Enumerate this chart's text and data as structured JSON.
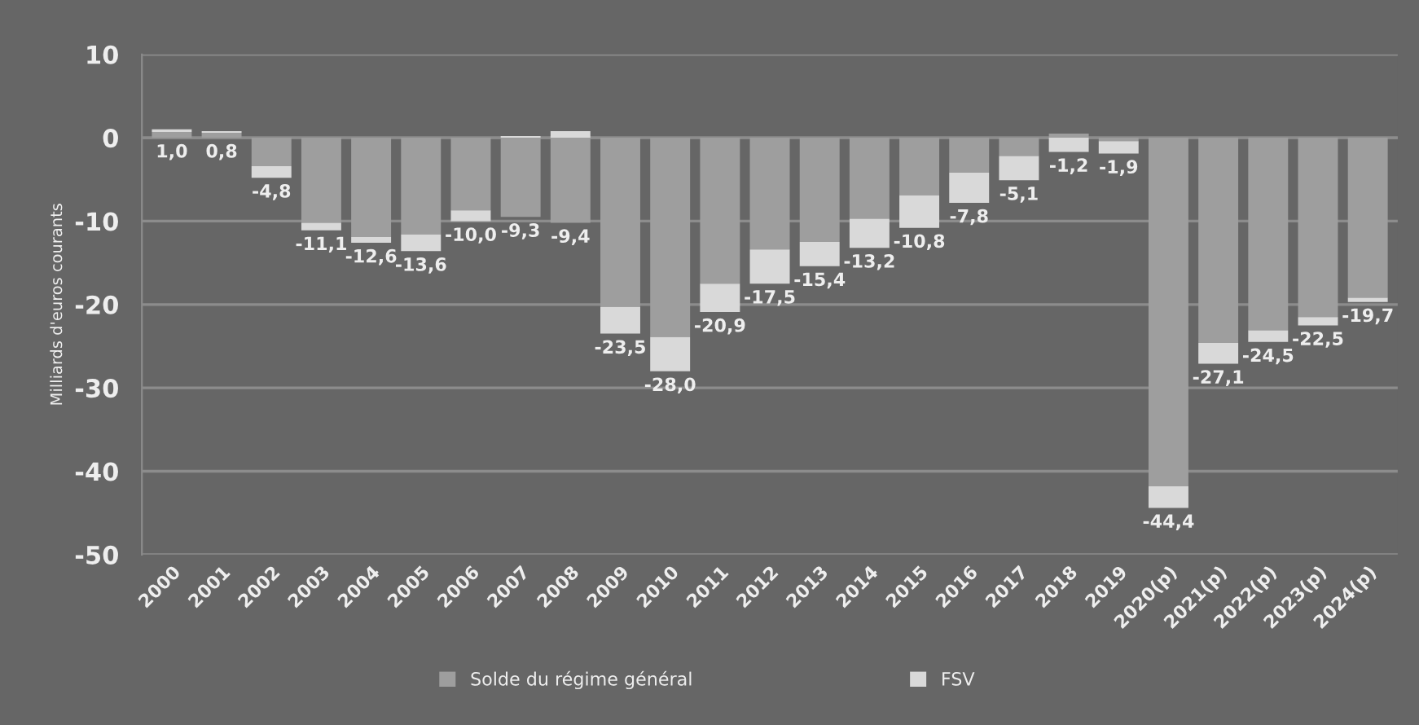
{
  "chart_data": {
    "type": "bar",
    "stacked": true,
    "ylabel": "Milliards d'euros courants",
    "categories": [
      "2000",
      "2001",
      "2002",
      "2003",
      "2004",
      "2005",
      "2006",
      "2007",
      "2008",
      "2009",
      "2010",
      "2011",
      "2012",
      "2013",
      "2014",
      "2015",
      "2016",
      "2017",
      "2018",
      "2019",
      "2020(p)",
      "2021(p)",
      "2022(p)",
      "2023(p)",
      "2024(p)"
    ],
    "series": [
      {
        "name": "Solde du régime général",
        "color": "#9e9e9e",
        "values": [
          0.7,
          0.6,
          -3.4,
          -10.2,
          -11.9,
          -11.6,
          -8.7,
          -9.5,
          -10.2,
          -20.3,
          -23.9,
          -17.5,
          -13.4,
          -12.5,
          -9.7,
          -6.9,
          -4.2,
          -2.2,
          0.5,
          -0.4,
          -41.8,
          -24.6,
          -23.1,
          -21.5,
          -19.2
        ]
      },
      {
        "name": "FSV",
        "color": "#d9d9d9",
        "values": [
          0.3,
          0.2,
          -1.4,
          -0.9,
          -0.7,
          -2.0,
          -1.3,
          0.2,
          0.8,
          -3.2,
          -4.1,
          -3.4,
          -4.1,
          -2.9,
          -3.5,
          -3.9,
          -3.6,
          -2.9,
          -1.7,
          -1.5,
          -2.6,
          -2.5,
          -1.4,
          -1.0,
          -0.5
        ]
      }
    ],
    "totals": [
      "1,0",
      "0,8",
      "-4,8",
      "-11,1",
      "-12,6",
      "-13,6",
      "-10,0",
      "-9,3",
      "-9,4",
      "-23,5",
      "-28,0",
      "-20,9",
      "-17,5",
      "-15,4",
      "-13,2",
      "-10,8",
      "-7,8",
      "-5,1",
      "-1,2",
      "-1,9",
      "-44,4",
      "-27,1",
      "-24,5",
      "-22,5",
      "-19,7"
    ],
    "ylim": [
      -50,
      10
    ],
    "yticks": [
      -50,
      -40,
      -30,
      -20,
      -10,
      0,
      10
    ],
    "grid": "y",
    "legend": "bottom"
  }
}
